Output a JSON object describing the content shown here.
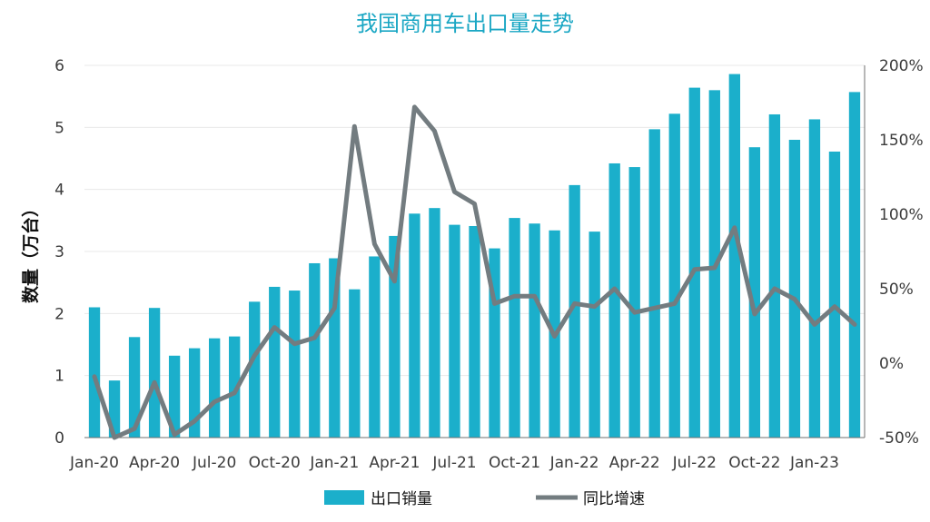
{
  "chart_data": {
    "type": "bar",
    "title": "我国商用车出口量走势",
    "ylabel": "数量（万台）",
    "ylim": [
      0,
      6
    ],
    "y2lim": [
      -50,
      200
    ],
    "y_ticks": [
      "0",
      "1",
      "2",
      "3",
      "4",
      "5",
      "6"
    ],
    "y2_ticks": [
      "-50%",
      "0%",
      "50%",
      "100%",
      "150%",
      "200%"
    ],
    "x_tick_labels": [
      "Jan-20",
      "Apr-20",
      "Jul-20",
      "Oct-20",
      "Jan-21",
      "Apr-21",
      "Jul-21",
      "Oct-21",
      "Jan-22",
      "Apr-22",
      "Jul-22",
      "Oct-22",
      "Jan-23"
    ],
    "x_tick_every": 3,
    "grid": true,
    "legend_position": "bottom",
    "categories": [
      "Jan-20",
      "Feb-20",
      "Mar-20",
      "Apr-20",
      "May-20",
      "Jun-20",
      "Jul-20",
      "Aug-20",
      "Sep-20",
      "Oct-20",
      "Nov-20",
      "Dec-20",
      "Jan-21",
      "Feb-21",
      "Mar-21",
      "Apr-21",
      "May-21",
      "Jun-21",
      "Jul-21",
      "Aug-21",
      "Sep-21",
      "Oct-21",
      "Nov-21",
      "Dec-21",
      "Jan-22",
      "Feb-22",
      "Mar-22",
      "Apr-22",
      "May-22",
      "Jun-22",
      "Jul-22",
      "Aug-22",
      "Sep-22",
      "Oct-22",
      "Nov-22",
      "Dec-22",
      "Jan-23",
      "Feb-23",
      "Mar-23"
    ],
    "series": [
      {
        "name": "出口销量",
        "type": "bar",
        "axis": "left",
        "color": "#1BAFCB",
        "values": [
          2.1,
          0.92,
          1.62,
          2.09,
          1.32,
          1.44,
          1.6,
          1.63,
          2.19,
          2.43,
          2.37,
          2.81,
          2.89,
          2.39,
          2.92,
          3.25,
          3.61,
          3.7,
          3.43,
          3.41,
          3.05,
          3.54,
          3.45,
          3.34,
          4.07,
          3.32,
          4.42,
          4.36,
          4.97,
          5.22,
          5.64,
          5.6,
          5.86,
          4.68,
          5.21,
          4.8,
          5.13,
          4.61,
          5.57
        ]
      },
      {
        "name": "同比增速",
        "type": "line",
        "axis": "right",
        "color": "#737C80",
        "values": [
          -9,
          -50,
          -44,
          -13,
          -48,
          -39,
          -26,
          -20,
          5,
          24,
          13,
          17,
          37,
          159,
          80,
          55,
          172,
          156,
          115,
          107,
          40,
          45,
          45,
          18,
          40,
          38,
          50,
          34,
          37,
          40,
          63,
          64,
          91,
          33,
          50,
          43,
          26,
          38,
          26
        ]
      }
    ]
  }
}
